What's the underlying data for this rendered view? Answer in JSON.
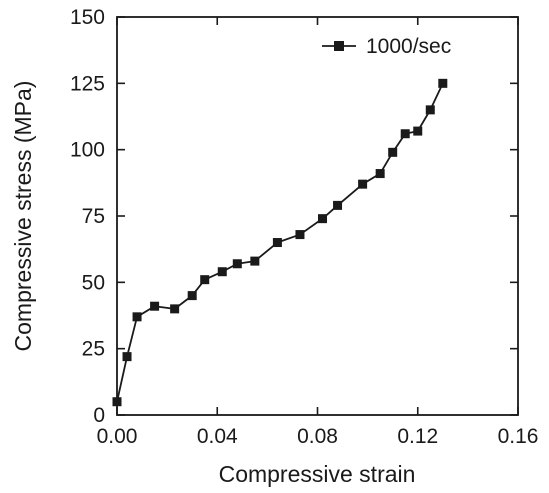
{
  "chart_data": {
    "type": "line",
    "xlabel": "Compressive strain",
    "ylabel": "Compressive stress (MPa)",
    "xlim": [
      0.0,
      0.16
    ],
    "ylim": [
      0,
      150
    ],
    "x_ticks": [
      "0.00",
      "0.04",
      "0.08",
      "0.12",
      "0.16"
    ],
    "y_ticks": [
      "0",
      "25",
      "50",
      "75",
      "100",
      "125",
      "150"
    ],
    "grid": false,
    "legend_position": "top-right",
    "series": [
      {
        "name": "1000/sec",
        "color": "#1a1a1a",
        "marker": "square",
        "x": [
          0.0,
          0.004,
          0.008,
          0.015,
          0.023,
          0.03,
          0.035,
          0.042,
          0.048,
          0.055,
          0.064,
          0.073,
          0.082,
          0.088,
          0.098,
          0.105,
          0.11,
          0.115,
          0.12,
          0.125,
          0.13
        ],
        "y": [
          5,
          22,
          37,
          41,
          40,
          45,
          51,
          54,
          57,
          58,
          65,
          68,
          74,
          79,
          87,
          91,
          99,
          106,
          107,
          115,
          125
        ]
      }
    ]
  }
}
